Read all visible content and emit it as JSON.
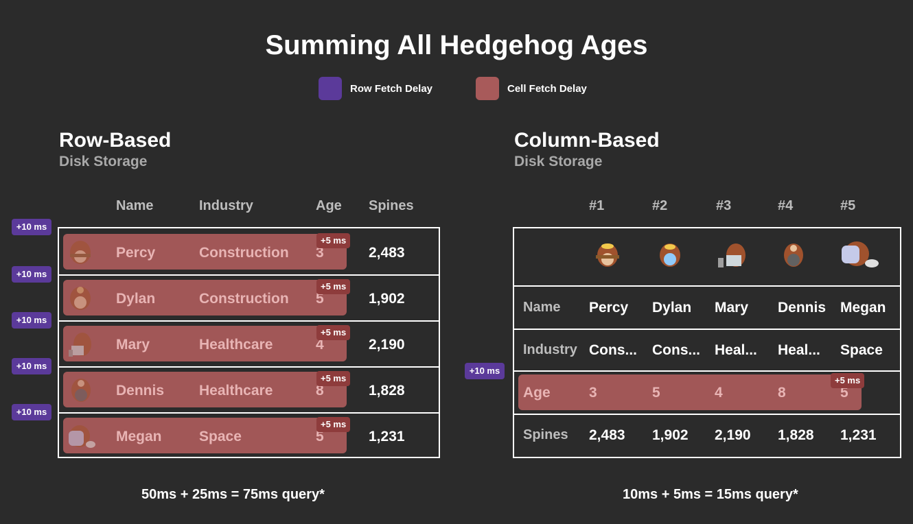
{
  "title": "Summing All Hedgehog Ages",
  "legend": {
    "row": {
      "label": "Row Fetch Delay",
      "color": "#5b3a9a"
    },
    "cell": {
      "label": "Cell Fetch Delay",
      "color": "#a85a5a"
    }
  },
  "row_based": {
    "title": "Row-Based",
    "subtitle": "Disk Storage",
    "headers": [
      "Name",
      "Industry",
      "Age",
      "Spines"
    ],
    "row_tag": "+10 ms",
    "cell_tag": "+5 ms",
    "rows": [
      {
        "name": "Percy",
        "industry": "Construction",
        "age": "3",
        "spines": "2,483"
      },
      {
        "name": "Dylan",
        "industry": "Construction",
        "age": "5",
        "spines": "1,902"
      },
      {
        "name": "Mary",
        "industry": "Healthcare",
        "age": "4",
        "spines": "2,190"
      },
      {
        "name": "Dennis",
        "industry": "Healthcare",
        "age": "8",
        "spines": "1,828"
      },
      {
        "name": "Megan",
        "industry": "Space",
        "age": "5",
        "spines": "1,231"
      }
    ],
    "footer": "50ms + 25ms = 75ms query*"
  },
  "column_based": {
    "title": "Column-Based",
    "subtitle": "Disk Storage",
    "headers": [
      "#1",
      "#2",
      "#3",
      "#4",
      "#5"
    ],
    "row_labels": {
      "name": "Name",
      "industry": "Industry",
      "age": "Age",
      "spines": "Spines"
    },
    "names": [
      "Percy",
      "Dylan",
      "Mary",
      "Dennis",
      "Megan"
    ],
    "industries": [
      "Cons...",
      "Cons...",
      "Heal...",
      "Heal...",
      "Space"
    ],
    "ages": [
      "3",
      "5",
      "4",
      "8",
      "5"
    ],
    "spines": [
      "2,483",
      "1,902",
      "2,190",
      "1,828",
      "1,231"
    ],
    "row_tag": "+10 ms",
    "cell_tag": "+5 ms",
    "footer": "10ms + 5ms = 15ms query*"
  }
}
